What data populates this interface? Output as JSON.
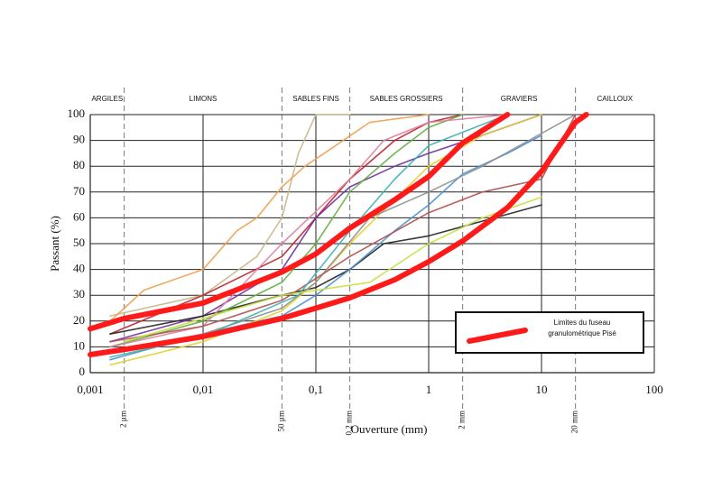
{
  "chart_data": {
    "type": "line",
    "xlabel": "Ouverture (mm)",
    "ylabel": "Passant (%)",
    "xscale": "log",
    "xlim": [
      0.001,
      100
    ],
    "ylim": [
      0,
      100
    ],
    "xticks": [
      {
        "value": 0.001,
        "label": "0,001"
      },
      {
        "value": 0.01,
        "label": "0,01"
      },
      {
        "value": 0.1,
        "label": "0,1"
      },
      1,
      10,
      100
    ],
    "yticks": [
      0,
      10,
      20,
      30,
      40,
      50,
      60,
      70,
      80,
      90,
      100
    ],
    "grid": true,
    "legend": "lower right",
    "zones": [
      "ARGILES",
      "LIMONS",
      "SABLES  FINS",
      "SABLES GROSSIERS",
      "GRAVIERS",
      "CAILLOUX"
    ],
    "boundaries": [
      {
        "value": 0.002,
        "label": "2 µm"
      },
      {
        "value": 0.05,
        "label": "50 µm"
      },
      {
        "value": 0.2,
        "label": "0,2 mm"
      },
      {
        "value": 2,
        "label": "2 mm"
      },
      {
        "value": 20,
        "label": "20 mm"
      }
    ],
    "series": [
      {
        "color": "#c8b88a",
        "x": [
          0.0015,
          0.01,
          0.03,
          0.05,
          0.07,
          0.1,
          0.2
        ],
        "values": [
          22,
          30,
          45,
          60,
          85,
          100,
          100
        ]
      },
      {
        "color": "#f0a050",
        "x": [
          0.0015,
          0.003,
          0.01,
          0.02,
          0.03,
          0.05,
          0.08,
          0.15,
          0.3,
          1
        ],
        "values": [
          20,
          32,
          40,
          55,
          60,
          72,
          80,
          88,
          97,
          100
        ]
      },
      {
        "color": "#c0202a",
        "x": [
          0.0015,
          0.01,
          0.05,
          0.1,
          0.2,
          0.5,
          1,
          2
        ],
        "values": [
          15,
          30,
          45,
          60,
          75,
          90,
          97,
          100
        ]
      },
      {
        "color": "#7030a0",
        "x": [
          0.0015,
          0.01,
          0.05,
          0.1,
          0.2,
          0.5,
          1,
          3,
          10
        ],
        "values": [
          12,
          22,
          40,
          60,
          72,
          80,
          85,
          92,
          100
        ]
      },
      {
        "color": "#222222",
        "x": [
          0.0015,
          0.01,
          0.05,
          0.1,
          0.2,
          0.4,
          1,
          10
        ],
        "values": [
          15,
          22,
          30,
          33,
          40,
          50,
          53,
          65
        ]
      },
      {
        "color": "#4a90d0",
        "x": [
          0.0015,
          0.01,
          0.05,
          0.1,
          0.2,
          0.5,
          1,
          2,
          5,
          10
        ],
        "values": [
          5,
          15,
          22,
          30,
          40,
          55,
          65,
          77,
          85,
          92
        ]
      },
      {
        "color": "#60b040",
        "x": [
          0.0015,
          0.01,
          0.05,
          0.1,
          0.2,
          0.5,
          1,
          2
        ],
        "values": [
          10,
          20,
          35,
          50,
          70,
          85,
          95,
          100
        ]
      },
      {
        "color": "#e0d030",
        "x": [
          0.0015,
          0.01,
          0.05,
          0.1,
          0.2,
          1,
          3,
          10
        ],
        "values": [
          3,
          12,
          24,
          35,
          50,
          80,
          92,
          100
        ]
      },
      {
        "color": "#909090",
        "x": [
          0.0015,
          0.01,
          0.05,
          0.1,
          0.3,
          1,
          3,
          20
        ],
        "values": [
          8,
          15,
          25,
          35,
          60,
          70,
          80,
          100
        ]
      },
      {
        "color": "#e080a0",
        "x": [
          0.0015,
          0.01,
          0.05,
          0.2,
          0.4,
          1,
          5
        ],
        "values": [
          10,
          18,
          50,
          75,
          90,
          97,
          100
        ]
      },
      {
        "color": "#b05050",
        "x": [
          0.0015,
          0.01,
          0.05,
          0.2,
          1,
          3,
          10,
          20
        ],
        "values": [
          12,
          18,
          28,
          45,
          62,
          70,
          75,
          100
        ]
      },
      {
        "color": "#40b0b0",
        "x": [
          0.0015,
          0.01,
          0.07,
          0.2,
          0.5,
          1,
          5
        ],
        "values": [
          6,
          14,
          30,
          55,
          75,
          88,
          100
        ]
      },
      {
        "color": "#c8e040",
        "x": [
          0.002,
          0.05,
          0.3,
          1,
          3,
          10
        ],
        "values": [
          12,
          30,
          35,
          50,
          60,
          68
        ]
      },
      {
        "name": "Limites du fuseau granulométrique Pisé",
        "color": "#ff1a1a",
        "x": [
          0.001,
          0.002,
          0.01,
          0.05,
          0.1,
          0.2,
          0.5,
          1,
          2,
          5
        ],
        "values": [
          17,
          21,
          27,
          39,
          46,
          56,
          67,
          76,
          89,
          100
        ]
      },
      {
        "color": "#ff1a1a",
        "x": [
          0.001,
          0.002,
          0.01,
          0.05,
          0.1,
          0.2,
          0.5,
          1,
          2,
          5,
          10,
          20,
          25
        ],
        "values": [
          7,
          9,
          14,
          21,
          25,
          29,
          36,
          43,
          51,
          64,
          78,
          97,
          100
        ]
      }
    ]
  }
}
